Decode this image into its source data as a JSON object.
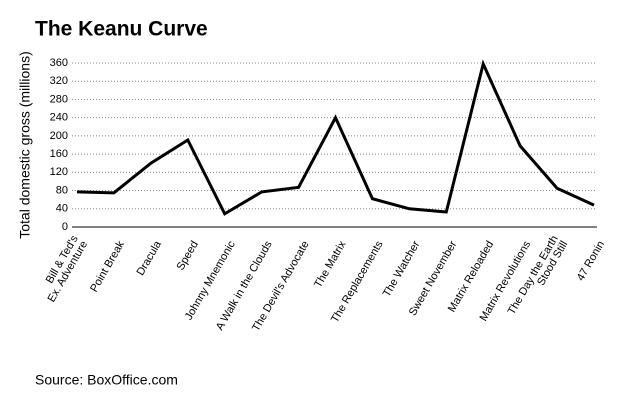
{
  "chart_data": {
    "type": "line",
    "title": "The Keanu Curve",
    "y_label": "Total domestic gross (millions)",
    "source": "Source: BoxOffice.com",
    "categories": [
      "Bill & Ted's\nEx. Adventure",
      "Point Break",
      "Dracula",
      "Speed",
      "Johnny Mnemonic",
      "A Walk in the Clouds",
      "The Devil's Advocate",
      "The Matrix",
      "The Replacements",
      "The Watcher",
      "Sweet November",
      "Matrix Reloaded",
      "Matrix Revolutions",
      "The Day the Earth\nStood Still",
      "47 Ronin"
    ],
    "values": [
      77,
      75,
      140,
      191,
      29,
      77,
      87,
      240,
      62,
      40,
      33,
      358,
      178,
      85,
      48
    ],
    "color": "#000000",
    "ylim": [
      0,
      360
    ],
    "yticks": [
      0,
      40,
      80,
      120,
      160,
      200,
      240,
      280,
      320,
      360
    ],
    "grid": true
  }
}
